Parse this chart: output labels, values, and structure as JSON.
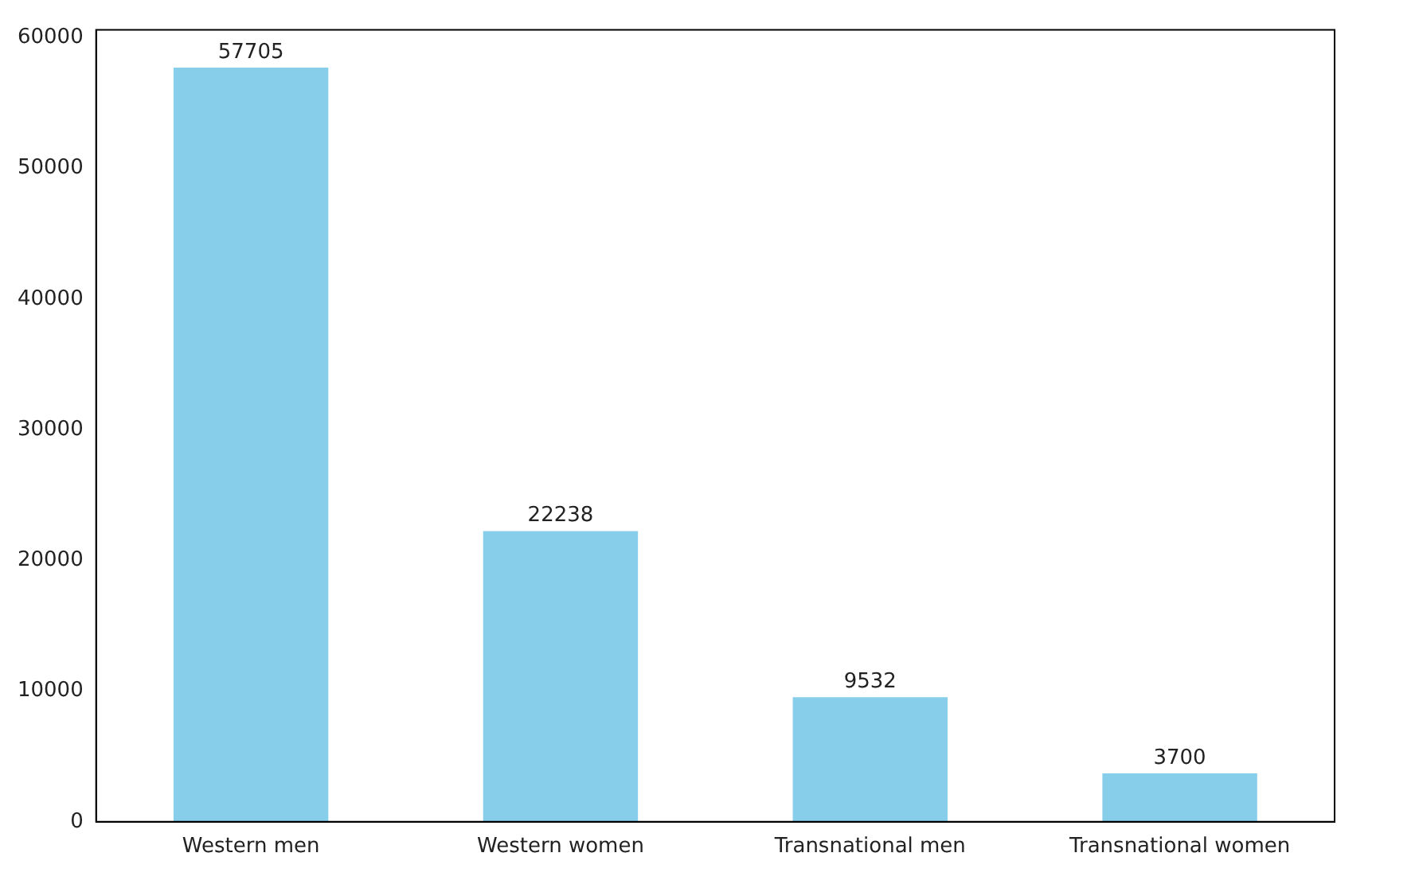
{
  "chart_data": {
    "type": "bar",
    "categories": [
      "Western men",
      "Western women",
      "Transnational men",
      "Transnational women"
    ],
    "values": [
      57705,
      22238,
      9532,
      3700
    ],
    "color": "#87ceeb",
    "ylim": [
      0,
      60590
    ],
    "yticks": [
      0,
      10000,
      20000,
      30000,
      40000,
      50000,
      60000
    ],
    "grid": false,
    "legend": false,
    "data_labels": true
  }
}
